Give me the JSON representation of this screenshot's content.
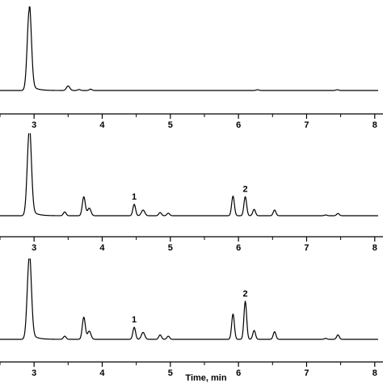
{
  "chart_data": [
    {
      "type": "line",
      "panel": "top",
      "xlabel": "",
      "ylabel": "",
      "xlim": [
        2.5,
        8.05
      ],
      "x_ticks": [
        3,
        4,
        5,
        6,
        7,
        8
      ],
      "x_tick_labels": [
        "3",
        "4",
        "5",
        "6",
        "7",
        "8"
      ],
      "grid": false,
      "peaks": [
        {
          "x": 2.93,
          "height": 1.25,
          "width": 0.03,
          "tail": 0.08
        },
        {
          "x": 3.5,
          "height": 0.07,
          "width": 0.025
        },
        {
          "x": 3.66,
          "height": 0.015,
          "width": 0.02
        },
        {
          "x": 3.83,
          "height": 0.02,
          "width": 0.02
        },
        {
          "x": 6.28,
          "height": 0.012,
          "width": 0.02
        },
        {
          "x": 7.45,
          "height": 0.012,
          "width": 0.02
        }
      ],
      "annotations": []
    },
    {
      "type": "line",
      "panel": "middle",
      "xlabel": "",
      "ylabel": "",
      "xlim": [
        2.5,
        8.05
      ],
      "x_ticks": [
        3,
        4,
        5,
        6,
        7,
        8
      ],
      "x_tick_labels": [
        "3",
        "4",
        "5",
        "6",
        "7",
        "8"
      ],
      "grid": false,
      "peaks": [
        {
          "x": 2.93,
          "height": 1.35,
          "width": 0.03,
          "tail": 0.08
        },
        {
          "x": 3.45,
          "height": 0.06,
          "width": 0.02
        },
        {
          "x": 3.73,
          "height": 0.3,
          "width": 0.022
        },
        {
          "x": 3.81,
          "height": 0.12,
          "width": 0.025
        },
        {
          "x": 4.47,
          "height": 0.18,
          "width": 0.02
        },
        {
          "x": 4.6,
          "height": 0.09,
          "width": 0.025
        },
        {
          "x": 4.85,
          "height": 0.05,
          "width": 0.02
        },
        {
          "x": 4.97,
          "height": 0.04,
          "width": 0.02
        },
        {
          "x": 5.92,
          "height": 0.31,
          "width": 0.02
        },
        {
          "x": 6.1,
          "height": 0.3,
          "width": 0.02
        },
        {
          "x": 6.23,
          "height": 0.1,
          "width": 0.02
        },
        {
          "x": 6.53,
          "height": 0.09,
          "width": 0.02
        },
        {
          "x": 7.28,
          "height": 0.012,
          "width": 0.02
        },
        {
          "x": 7.46,
          "height": 0.035,
          "width": 0.02
        }
      ],
      "annotations": [
        {
          "label": "1",
          "x": 4.47
        },
        {
          "label": "2",
          "x": 6.1
        }
      ]
    },
    {
      "type": "line",
      "panel": "bottom",
      "xlabel": "Time, min",
      "ylabel": "",
      "xlim": [
        2.5,
        8.05
      ],
      "x_ticks": [
        3,
        4,
        5,
        6,
        7,
        8
      ],
      "x_tick_labels": [
        "3",
        "4",
        "5",
        "6",
        "7",
        "8"
      ],
      "grid": false,
      "peaks": [
        {
          "x": 2.93,
          "height": 1.3,
          "width": 0.03,
          "tail": 0.08
        },
        {
          "x": 3.45,
          "height": 0.05,
          "width": 0.02
        },
        {
          "x": 3.73,
          "height": 0.35,
          "width": 0.022
        },
        {
          "x": 3.81,
          "height": 0.13,
          "width": 0.025
        },
        {
          "x": 4.47,
          "height": 0.19,
          "width": 0.02
        },
        {
          "x": 4.6,
          "height": 0.11,
          "width": 0.025
        },
        {
          "x": 4.85,
          "height": 0.07,
          "width": 0.02
        },
        {
          "x": 4.97,
          "height": 0.05,
          "width": 0.02
        },
        {
          "x": 5.92,
          "height": 0.4,
          "width": 0.02
        },
        {
          "x": 6.1,
          "height": 0.6,
          "width": 0.02
        },
        {
          "x": 6.23,
          "height": 0.14,
          "width": 0.02
        },
        {
          "x": 6.53,
          "height": 0.12,
          "width": 0.02
        },
        {
          "x": 7.28,
          "height": 0.015,
          "width": 0.02
        },
        {
          "x": 7.46,
          "height": 0.07,
          "width": 0.02
        }
      ],
      "annotations": [
        {
          "label": "1",
          "x": 4.47
        },
        {
          "label": "2",
          "x": 6.1
        }
      ]
    }
  ]
}
